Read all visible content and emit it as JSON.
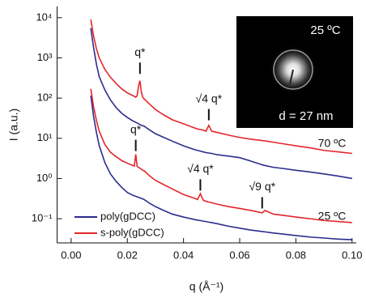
{
  "chart_data": {
    "type": "line",
    "log_y": true,
    "x_label": "q (Å⁻¹)",
    "y_label": "I (a.u.)",
    "xlim": [
      -0.005,
      0.1015
    ],
    "ylim": [
      0.025,
      19000
    ],
    "xticks": [
      {
        "value": 0,
        "label": "0.00"
      },
      {
        "value": 0.02,
        "label": "0.02"
      },
      {
        "value": 0.04,
        "label": "0.04"
      },
      {
        "value": 0.06,
        "label": "0.06"
      },
      {
        "value": 0.08,
        "label": "0.08"
      },
      {
        "value": 0.1,
        "label": "0.10"
      }
    ],
    "yticks": [
      {
        "value": 0.1,
        "label": "10⁻¹"
      },
      {
        "value": 1,
        "label": "10⁰"
      },
      {
        "value": 10,
        "label": "10¹"
      },
      {
        "value": 100,
        "label": "10²"
      },
      {
        "value": 1000,
        "label": "10³"
      },
      {
        "value": 10000,
        "label": "10⁴"
      }
    ],
    "x": [
      0.007,
      0.008,
      0.009,
      0.01,
      0.012,
      0.014,
      0.016,
      0.018,
      0.02,
      0.022,
      0.0225,
      0.023,
      0.0235,
      0.024,
      0.0245,
      0.025,
      0.0255,
      0.026,
      0.028,
      0.03,
      0.033,
      0.036,
      0.04,
      0.044,
      0.045,
      0.046,
      0.047,
      0.048,
      0.049,
      0.05,
      0.052,
      0.056,
      0.06,
      0.064,
      0.068,
      0.069,
      0.072,
      0.076,
      0.08,
      0.085,
      0.09,
      0.095,
      0.1
    ],
    "series": [
      {
        "name": "poly(gDCC)",
        "color": "#2b2d8c",
        "curves": [
          [
            5500,
            1800,
            700,
            340,
            160,
            90,
            58,
            42,
            33,
            27,
            26,
            25,
            24,
            23,
            22,
            21,
            20.5,
            20,
            16,
            13,
            10.5,
            8.5,
            6.5,
            5.2,
            5,
            4.8,
            4.6,
            4.4,
            4.3,
            4.2,
            3.9,
            3.6,
            3.3,
            2.7,
            2.2,
            2.1,
            1.9,
            1.75,
            1.6,
            1.45,
            1.3,
            1.15,
            1.0
          ],
          [
            115,
            35,
            14,
            6.6,
            2.5,
            1.3,
            0.85,
            0.6,
            0.45,
            0.38,
            0.37,
            0.36,
            0.35,
            0.34,
            0.33,
            0.32,
            0.31,
            0.3,
            0.24,
            0.2,
            0.16,
            0.13,
            0.11,
            0.095,
            0.092,
            0.09,
            0.087,
            0.085,
            0.082,
            0.08,
            0.075,
            0.065,
            0.058,
            0.052,
            0.048,
            0.047,
            0.044,
            0.041,
            0.038,
            0.035,
            0.033,
            0.031,
            0.03
          ]
        ]
      },
      {
        "name": "s-poly(gDCC)",
        "color": "#e3262b",
        "curves": [
          [
            9000,
            3500,
            1700,
            1000,
            520,
            330,
            230,
            170,
            135,
            115,
            110,
            105,
            115,
            200,
            270,
            140,
            105,
            95,
            70,
            52,
            38,
            29,
            23,
            18,
            17,
            16.5,
            16,
            15,
            21,
            15,
            14,
            12,
            10.5,
            9.5,
            8.8,
            8.6,
            8,
            7.2,
            6.5,
            5.8,
            5,
            4.6,
            4.2
          ],
          [
            170,
            60,
            28,
            15,
            7,
            4.5,
            3.5,
            2.8,
            2.4,
            2.1,
            2.05,
            4.0,
            2.0,
            1.9,
            1.8,
            1.7,
            1.6,
            1.55,
            1.15,
            0.9,
            0.7,
            0.55,
            0.4,
            0.32,
            0.3,
            0.42,
            0.29,
            0.27,
            0.26,
            0.25,
            0.23,
            0.2,
            0.18,
            0.16,
            0.14,
            0.16,
            0.13,
            0.12,
            0.11,
            0.1,
            0.09,
            0.085,
            0.08
          ]
        ]
      }
    ],
    "curve_labels": [
      "70 ºC",
      "25 ºC"
    ],
    "annotations": [
      {
        "text": "q*",
        "x": 0.0245,
        "y": 400
      },
      {
        "text": "√4 q*",
        "x": 0.049,
        "y": 28
      },
      {
        "text": "q*",
        "x": 0.023,
        "y": 4.8
      },
      {
        "text": "√4 q*",
        "x": 0.046,
        "y": 0.5
      },
      {
        "text": "√9 q*",
        "x": 0.068,
        "y": 0.18
      }
    ],
    "inset": {
      "temperature": "25 ºC",
      "spacing": "d = 27 nm"
    }
  }
}
